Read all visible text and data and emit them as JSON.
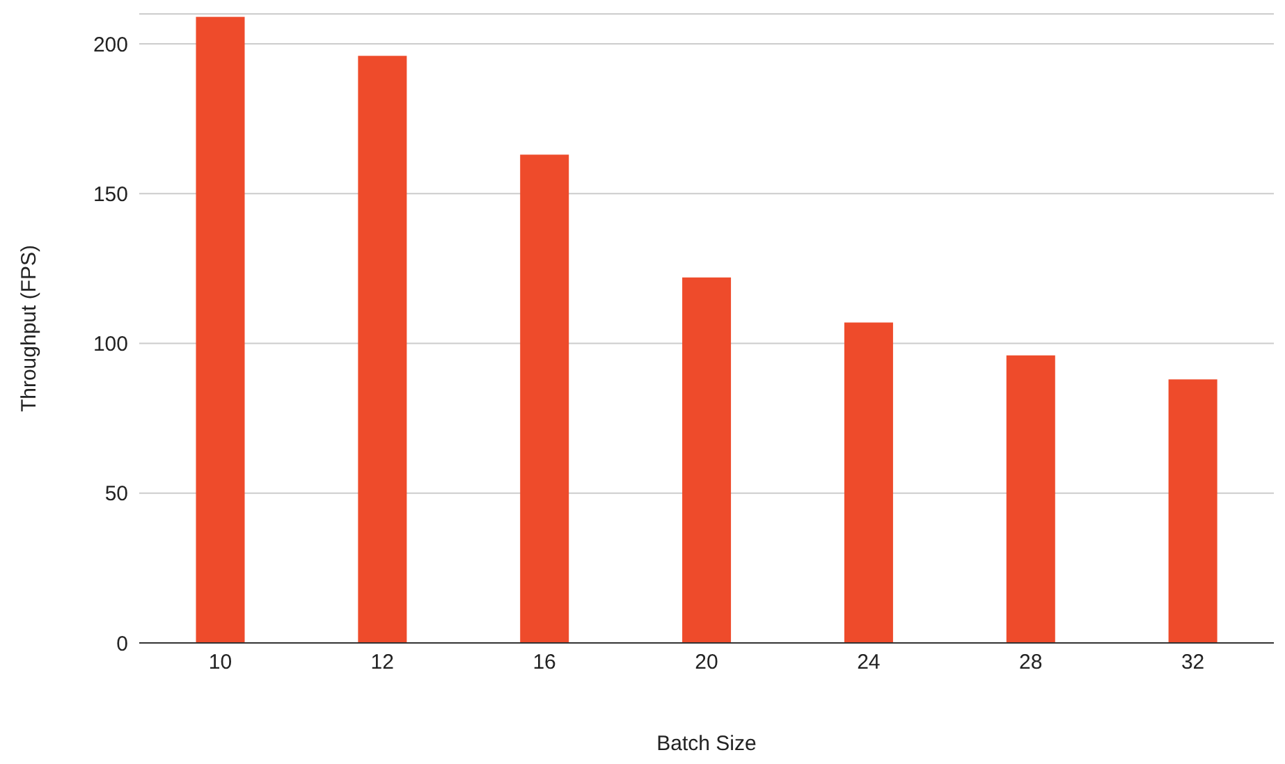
{
  "chart_data": {
    "type": "bar",
    "xlabel": "Batch Size",
    "ylabel": "Throughput (FPS)",
    "categories": [
      "10",
      "12",
      "16",
      "20",
      "24",
      "28",
      "32"
    ],
    "values": [
      209,
      196,
      163,
      122,
      107,
      96,
      88
    ],
    "color": "#ee4b2b",
    "ylim": [
      0,
      210
    ],
    "yticks": [
      0,
      50,
      100,
      150,
      200
    ],
    "grid": "y"
  }
}
